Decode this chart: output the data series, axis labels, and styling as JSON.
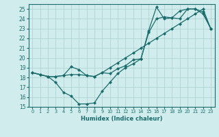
{
  "xlabel": "Humidex (Indice chaleur)",
  "bg_color": "#d0ecec",
  "line_color": "#1a6b6b",
  "grid_color": "#b0d4d4",
  "ylim": [
    15,
    25.5
  ],
  "xlim": [
    -0.5,
    23.5
  ],
  "yticks": [
    15,
    16,
    17,
    18,
    19,
    20,
    21,
    22,
    23,
    24,
    25
  ],
  "xticks": [
    0,
    1,
    2,
    3,
    4,
    5,
    6,
    7,
    8,
    9,
    10,
    11,
    12,
    13,
    14,
    15,
    16,
    17,
    18,
    19,
    20,
    21,
    22,
    23
  ],
  "line1_x": [
    0,
    1,
    2,
    3,
    4,
    5,
    6,
    7,
    8,
    9,
    10,
    11,
    12,
    13,
    14,
    15,
    16,
    17,
    18,
    19,
    20,
    21,
    22,
    23
  ],
  "line1_y": [
    18.5,
    18.3,
    18.1,
    17.5,
    16.5,
    16.1,
    15.3,
    15.3,
    15.4,
    16.6,
    17.5,
    18.4,
    19.0,
    19.4,
    19.9,
    22.6,
    24.0,
    24.2,
    24.1,
    24.0,
    25.0,
    25.0,
    24.7,
    23.0
  ],
  "line2_x": [
    0,
    1,
    2,
    3,
    4,
    5,
    6,
    7,
    8,
    9,
    10,
    11,
    12,
    13,
    14,
    15,
    16,
    17,
    18,
    19,
    20,
    21,
    22,
    23
  ],
  "line2_y": [
    18.5,
    18.3,
    18.1,
    18.1,
    18.2,
    18.3,
    18.3,
    18.2,
    18.1,
    18.5,
    19.0,
    19.5,
    20.0,
    20.5,
    21.0,
    21.5,
    22.0,
    22.5,
    23.0,
    23.5,
    24.0,
    24.5,
    25.0,
    23.0
  ],
  "line3_x": [
    0,
    1,
    2,
    3,
    4,
    5,
    6,
    7,
    8,
    9,
    10,
    11,
    12,
    13,
    14,
    15,
    16,
    17,
    18,
    19,
    20,
    21,
    22,
    23
  ],
  "line3_y": [
    18.5,
    18.3,
    18.1,
    18.1,
    18.2,
    19.1,
    18.8,
    18.2,
    18.1,
    18.5,
    18.4,
    18.9,
    19.2,
    19.8,
    19.9,
    22.8,
    25.2,
    24.0,
    24.1,
    24.8,
    25.0,
    25.0,
    24.5,
    23.0
  ]
}
